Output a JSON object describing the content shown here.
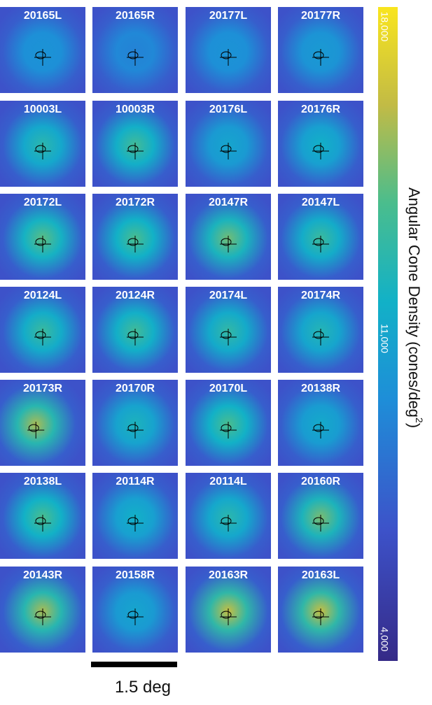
{
  "panels": [
    {
      "label": "20165L"
    },
    {
      "label": "20165R"
    },
    {
      "label": "20177L"
    },
    {
      "label": "20177R"
    },
    {
      "label": "10003L"
    },
    {
      "label": "10003R"
    },
    {
      "label": "20176L"
    },
    {
      "label": "20176R"
    },
    {
      "label": "20172L"
    },
    {
      "label": "20172R"
    },
    {
      "label": "20147R"
    },
    {
      "label": "20147L"
    },
    {
      "label": "20124L"
    },
    {
      "label": "20124R"
    },
    {
      "label": "20174L"
    },
    {
      "label": "20174R"
    },
    {
      "label": "20173R"
    },
    {
      "label": "20170R"
    },
    {
      "label": "20170L"
    },
    {
      "label": "20138R"
    },
    {
      "label": "20138L"
    },
    {
      "label": "20114R"
    },
    {
      "label": "20114L"
    },
    {
      "label": "20160R"
    },
    {
      "label": "20143R"
    },
    {
      "label": "20158R"
    },
    {
      "label": "20163R"
    },
    {
      "label": "20163L"
    }
  ],
  "colorbar": {
    "ticks": [
      "18,000",
      "11,000",
      "4,000"
    ],
    "label_parts": [
      "Angular Cone Density (cones/deg",
      "2",
      ")"
    ]
  },
  "scale_bar": {
    "label": "1.5 deg"
  }
}
